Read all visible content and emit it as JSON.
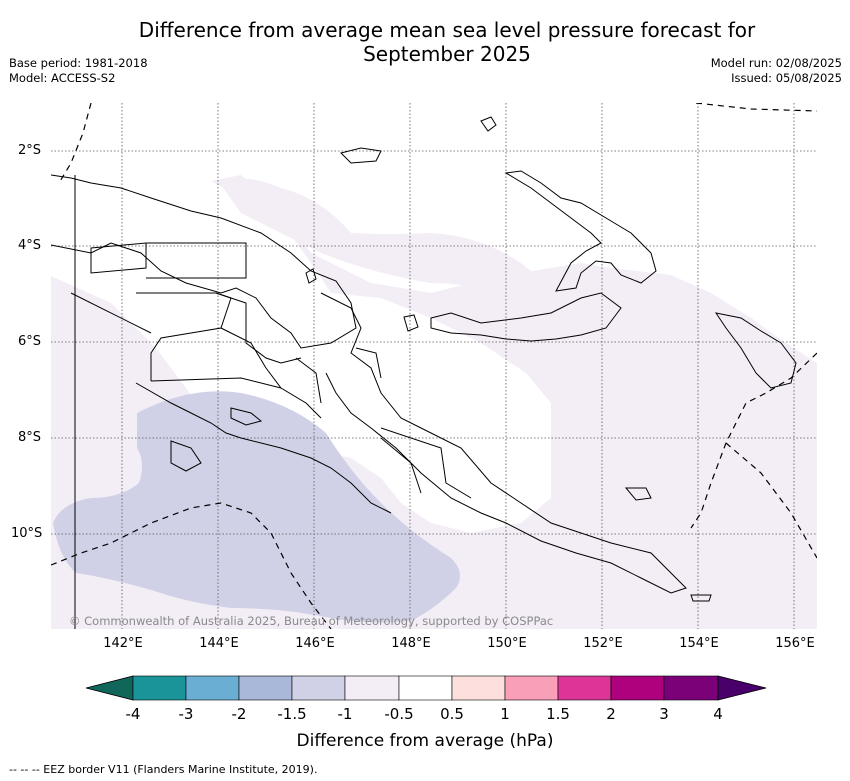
{
  "title": "Difference from average mean sea level pressure forecast for September 2025",
  "title_line1": "Difference from average mean sea level pressure forecast for",
  "title_line2": "September 2025",
  "base_period": "Base period: 1981-2018",
  "model": "Model: ACCESS-S2",
  "model_run": "Model run: 02/08/2025",
  "issued": "Issued: 05/08/2025",
  "lat_ticks": [
    "2°S",
    "4°S",
    "6°S",
    "8°S",
    "10°S"
  ],
  "lon_ticks": [
    "142°E",
    "144°E",
    "146°E",
    "148°E",
    "150°E",
    "152°E",
    "154°E",
    "156°E"
  ],
  "copyright": "© Commonwealth of Australia 2025, Bureau of Meteorology, supported by COSPPac",
  "colorbar": {
    "title": "Difference from average (hPa)",
    "tick_labels": [
      "-4",
      "-3",
      "-2",
      "-1.5",
      "-1",
      "-0.5",
      "0.5",
      "1",
      "1.5",
      "2",
      "3",
      "4"
    ],
    "colors": [
      "#11665a",
      "#1a9399",
      "#6aaed4",
      "#a9b8d8",
      "#d0d1e6",
      "#f3edf6",
      "#ffffff",
      "#fde0dd",
      "#f9a0b8",
      "#dd3497",
      "#ad017e",
      "#7a0177",
      "#49006a"
    ]
  },
  "footnote": "--  --  -- EEZ border V11 (Flanders Marine Institute, 2019)."
}
